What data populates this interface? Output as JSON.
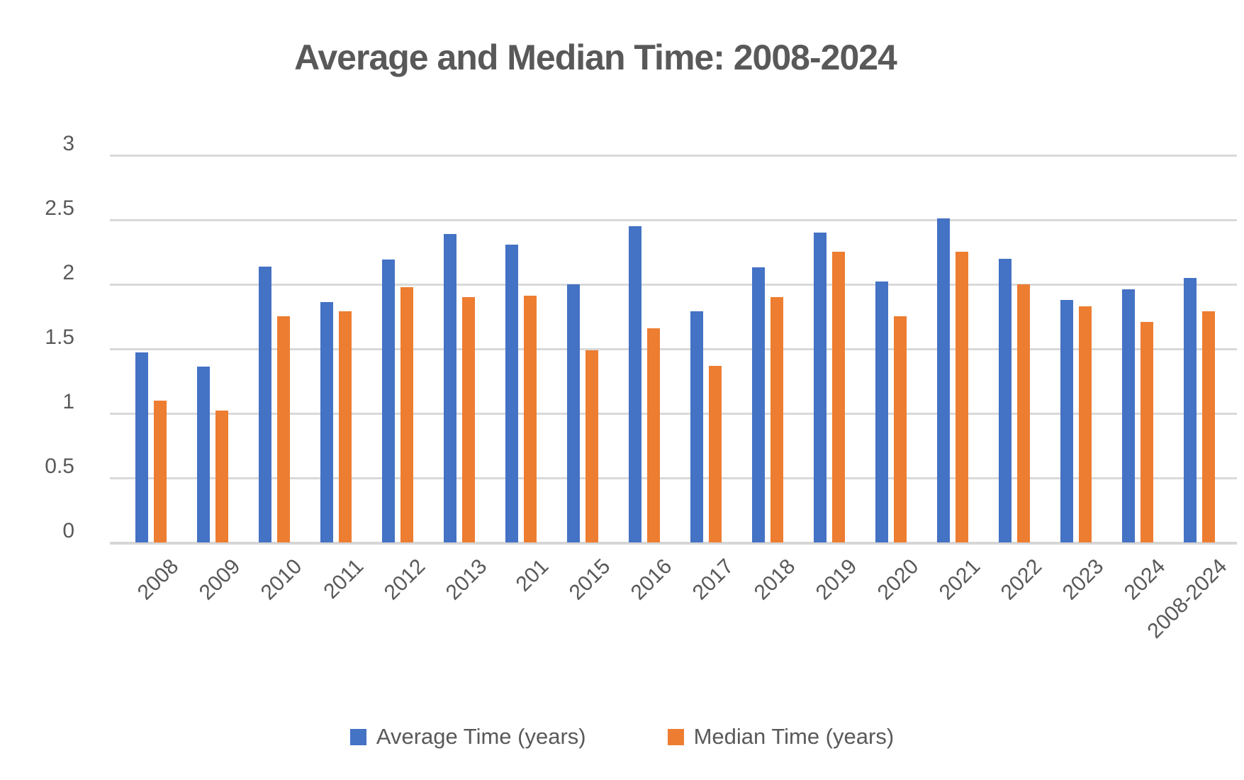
{
  "title": "Average and Median Time: 2008-2024",
  "colors": {
    "average_bar": "#4472C4",
    "median_bar": "#ED7D31",
    "gridline": "#D9D9D9",
    "text": "#595959"
  },
  "legend": {
    "average_label": "Average Time (years)",
    "median_label": "Median Time (years)"
  },
  "chart_data": {
    "type": "bar",
    "title": "Average and Median Time: 2008-2024",
    "categories": [
      "2008",
      "2009",
      "2010",
      "2011",
      "2012",
      "2013",
      "201",
      "2015",
      "2016",
      "2017",
      "2018",
      "2019",
      "2020",
      "2021",
      "2022",
      "2023",
      "2024",
      "2008-2024"
    ],
    "series": [
      {
        "name": "Average Time (years)",
        "color": "#4472C4",
        "values": [
          1.47,
          1.36,
          2.14,
          1.86,
          2.19,
          2.39,
          2.31,
          2.0,
          2.45,
          1.79,
          2.13,
          2.4,
          2.02,
          2.51,
          2.2,
          1.88,
          1.96,
          2.05
        ]
      },
      {
        "name": "Median Time (years)",
        "color": "#ED7D31",
        "values": [
          1.1,
          1.02,
          1.75,
          1.79,
          1.98,
          1.9,
          1.91,
          1.49,
          1.66,
          1.37,
          1.9,
          2.25,
          1.75,
          2.25,
          2.0,
          1.83,
          1.71,
          1.79
        ]
      }
    ],
    "xlabel": "",
    "ylabel": "",
    "y_axis": {
      "min": 0,
      "max": 3,
      "step": 0.5,
      "tick_labels": [
        "0",
        "0.5",
        "1",
        "1.5",
        "2",
        "2.5",
        "3"
      ]
    },
    "grid": true,
    "legend_position": "bottom"
  }
}
